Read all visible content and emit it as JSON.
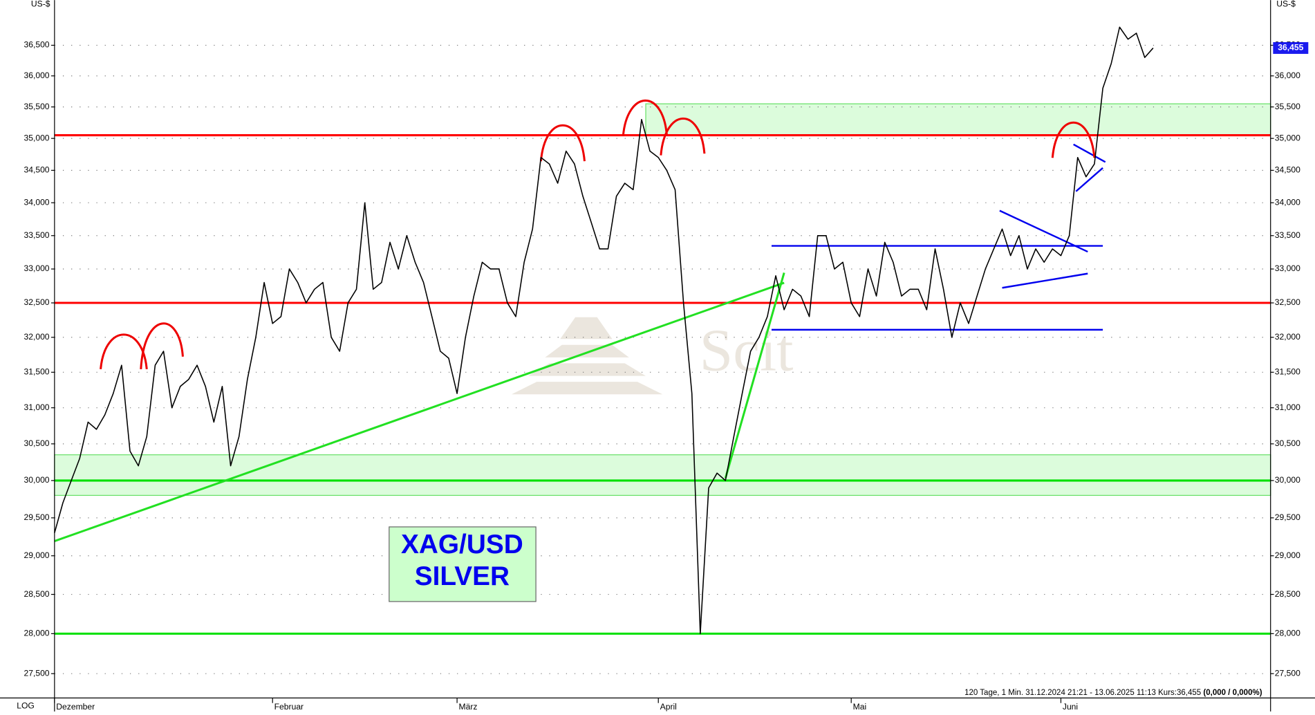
{
  "chart_data": {
    "type": "line",
    "subtitle": "SILVER",
    "y_unit": "US-$",
    "log_label": "LOG",
    "log_scale": true,
    "grid": true,
    "watermark": "Scit",
    "last_label": "36,455",
    "footer": "120 Tage, 1 Min. 31.12.2024 21:21 - 13.06.2025 11:13 Kurs:36,455",
    "footer_change": "(0,000 / 0,000%)",
    "categories": [
      "Dezember",
      null,
      null,
      null,
      null,
      null,
      null,
      null,
      null,
      null,
      null,
      null,
      null,
      null,
      null,
      null,
      null,
      null,
      null,
      null,
      null,
      null,
      null,
      null,
      null,
      null,
      "Februar",
      null,
      null,
      null,
      null,
      null,
      null,
      null,
      null,
      null,
      null,
      null,
      null,
      null,
      null,
      null,
      null,
      null,
      null,
      null,
      null,
      null,
      "März",
      null,
      null,
      null,
      null,
      null,
      null,
      null,
      null,
      null,
      null,
      null,
      null,
      null,
      null,
      null,
      null,
      null,
      null,
      null,
      null,
      null,
      null,
      null,
      "April",
      null,
      null,
      null,
      null,
      null,
      null,
      null,
      null,
      null,
      null,
      null,
      null,
      null,
      null,
      null,
      null,
      null,
      null,
      null,
      null,
      null,
      null,
      "Mai",
      null,
      null,
      null,
      null,
      null,
      null,
      null,
      null,
      null,
      null,
      null,
      null,
      null,
      null,
      null,
      null,
      null,
      null,
      null,
      null,
      null,
      null,
      null,
      null,
      "Juni",
      null,
      null,
      null,
      null,
      null,
      null,
      null,
      null,
      null,
      null,
      null
    ],
    "series": [
      {
        "name": "XAG/USD",
        "color": "#000000",
        "values": [
          29.3,
          29.7,
          30.0,
          30.3,
          30.8,
          30.7,
          30.9,
          31.2,
          31.6,
          30.4,
          30.2,
          30.6,
          31.6,
          31.8,
          31.0,
          31.3,
          31.4,
          31.6,
          31.3,
          30.8,
          31.3,
          30.2,
          30.6,
          31.4,
          32.0,
          32.8,
          32.2,
          32.3,
          33.0,
          32.8,
          32.5,
          32.7,
          32.8,
          32.0,
          31.8,
          32.5,
          32.7,
          34.0,
          32.7,
          32.8,
          33.4,
          33.0,
          33.5,
          33.1,
          32.8,
          32.3,
          31.8,
          31.7,
          31.2,
          32.0,
          32.6,
          33.1,
          33.0,
          33.0,
          32.5,
          32.3,
          33.1,
          33.6,
          34.7,
          34.6,
          34.3,
          34.8,
          34.6,
          34.1,
          33.7,
          33.3,
          33.3,
          34.1,
          34.3,
          34.2,
          35.3,
          34.8,
          34.7,
          34.5,
          34.2,
          32.5,
          31.2,
          28.0,
          29.9,
          30.1,
          30.0,
          30.6,
          31.2,
          31.8,
          32.0,
          32.3,
          32.9,
          32.4,
          32.7,
          32.6,
          32.3,
          33.5,
          33.5,
          33.0,
          33.1,
          32.5,
          32.3,
          33.0,
          32.6,
          33.4,
          33.1,
          32.6,
          32.7,
          32.7,
          32.4,
          33.3,
          32.7,
          32.0,
          32.5,
          32.2,
          32.6,
          33.0,
          33.3,
          33.6,
          33.2,
          33.5,
          33.0,
          33.3,
          33.1,
          33.3,
          33.2,
          33.5,
          34.7,
          34.4,
          34.6,
          35.8,
          36.2,
          36.8,
          36.6,
          36.7,
          36.3,
          36.455
        ]
      }
    ],
    "ylim": [
      27.2,
      37.25
    ],
    "yticks": [
      {
        "value": 27.5,
        "label": "27,500"
      },
      {
        "value": 28,
        "label": "28,000"
      },
      {
        "value": 28.5,
        "label": "28,500"
      },
      {
        "value": 29,
        "label": "29,000"
      },
      {
        "value": 29.5,
        "label": "29,500"
      },
      {
        "value": 30,
        "label": "30,000"
      },
      {
        "value": 30.5,
        "label": "30,500"
      },
      {
        "value": 31,
        "label": "31,000"
      },
      {
        "value": 31.5,
        "label": "31,500"
      },
      {
        "value": 32,
        "label": "32,000"
      },
      {
        "value": 32.5,
        "label": "32,500"
      },
      {
        "value": 33,
        "label": "33,000"
      },
      {
        "value": 33.5,
        "label": "33,500"
      },
      {
        "value": 34,
        "label": "34,000"
      },
      {
        "value": 34.5,
        "label": "34,500"
      },
      {
        "value": 35,
        "label": "35,000"
      },
      {
        "value": 35.5,
        "label": "35,500"
      },
      {
        "value": 36,
        "label": "36,000"
      },
      {
        "value": 36.5,
        "label": "36,500"
      }
    ],
    "levels": [
      {
        "value": 35.05,
        "color": "#ff0000"
      },
      {
        "value": 32.5,
        "color": "#ff0000"
      },
      {
        "value": 30.0,
        "color": "#00e000"
      },
      {
        "value": 28.0,
        "color": "#00e000"
      }
    ],
    "zones": [
      {
        "from": 35.05,
        "to": 35.55,
        "color": "#dcfcdc"
      },
      {
        "from": 29.8,
        "to": 30.35,
        "color": "#dcfcdc"
      }
    ]
  }
}
